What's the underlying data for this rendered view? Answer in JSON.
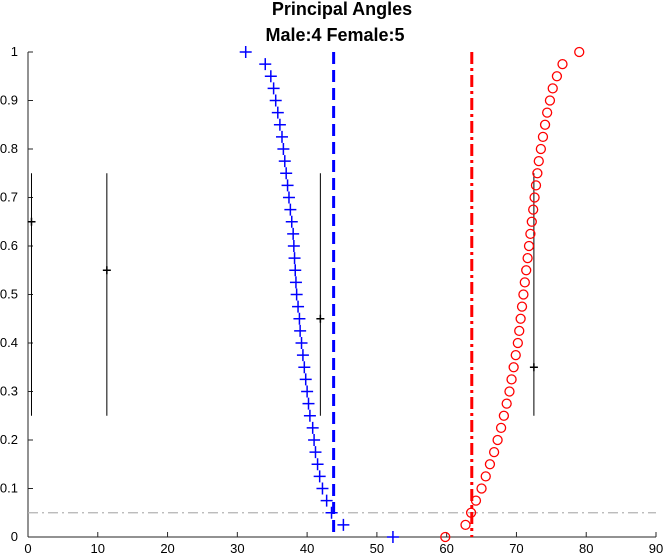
{
  "chart_data": {
    "type": "scatter",
    "title": "Principal Angles",
    "subtitle": "Male:4  Female:5",
    "xlabel": "",
    "ylabel": "",
    "xlim": [
      0,
      90
    ],
    "ylim": [
      0,
      1
    ],
    "x_ticks": [
      0,
      10,
      20,
      30,
      40,
      50,
      60,
      70,
      80,
      90
    ],
    "y_ticks": [
      0,
      0.1,
      0.2,
      0.3,
      0.4,
      0.5,
      0.6,
      0.7,
      0.8,
      0.9,
      1
    ],
    "x_tick_labels": [
      "0",
      "10",
      "20",
      "30",
      "40",
      "50",
      "60",
      "70",
      "80",
      "90"
    ],
    "y_tick_labels": [
      "0",
      "0.1",
      "0.2",
      "0.3",
      "0.4",
      "0.5",
      "0.6",
      "0.7",
      "0.8",
      "0.9",
      "1"
    ],
    "grid": false,
    "legend": "none",
    "series": [
      {
        "marker": "plus",
        "color": "#0000ff",
        "points": [
          [
            31.2,
            1.0
          ],
          [
            34.0,
            0.975
          ],
          [
            34.8,
            0.95
          ],
          [
            35.2,
            0.925
          ],
          [
            35.5,
            0.9
          ],
          [
            35.8,
            0.875
          ],
          [
            36.1,
            0.85
          ],
          [
            36.4,
            0.825
          ],
          [
            36.6,
            0.8
          ],
          [
            36.8,
            0.775
          ],
          [
            37.0,
            0.75
          ],
          [
            37.2,
            0.725
          ],
          [
            37.4,
            0.7
          ],
          [
            37.6,
            0.675
          ],
          [
            37.8,
            0.65
          ],
          [
            38.0,
            0.625
          ],
          [
            38.1,
            0.6
          ],
          [
            38.2,
            0.575
          ],
          [
            38.3,
            0.55
          ],
          [
            38.4,
            0.525
          ],
          [
            38.5,
            0.5
          ],
          [
            38.7,
            0.475
          ],
          [
            38.9,
            0.45
          ],
          [
            39.0,
            0.425
          ],
          [
            39.2,
            0.4
          ],
          [
            39.4,
            0.375
          ],
          [
            39.6,
            0.35
          ],
          [
            39.8,
            0.325
          ],
          [
            40.0,
            0.3
          ],
          [
            40.2,
            0.275
          ],
          [
            40.4,
            0.25
          ],
          [
            40.8,
            0.225
          ],
          [
            41.0,
            0.2
          ],
          [
            41.2,
            0.175
          ],
          [
            41.5,
            0.15
          ],
          [
            41.8,
            0.125
          ],
          [
            42.2,
            0.1
          ],
          [
            42.8,
            0.075
          ],
          [
            43.5,
            0.05
          ],
          [
            45.2,
            0.025
          ],
          [
            52.3,
            0.0
          ]
        ]
      },
      {
        "marker": "circle",
        "color": "#ff0000",
        "points": [
          [
            59.8,
            0.0
          ],
          [
            62.7,
            0.025
          ],
          [
            63.5,
            0.05
          ],
          [
            64.2,
            0.075
          ],
          [
            65.0,
            0.1
          ],
          [
            65.6,
            0.125
          ],
          [
            66.2,
            0.15
          ],
          [
            66.8,
            0.175
          ],
          [
            67.3,
            0.2
          ],
          [
            67.8,
            0.225
          ],
          [
            68.2,
            0.25
          ],
          [
            68.6,
            0.275
          ],
          [
            69.0,
            0.3
          ],
          [
            69.3,
            0.325
          ],
          [
            69.6,
            0.35
          ],
          [
            69.9,
            0.375
          ],
          [
            70.2,
            0.4
          ],
          [
            70.4,
            0.425
          ],
          [
            70.6,
            0.45
          ],
          [
            70.8,
            0.475
          ],
          [
            71.0,
            0.5
          ],
          [
            71.2,
            0.525
          ],
          [
            71.4,
            0.55
          ],
          [
            71.6,
            0.575
          ],
          [
            71.8,
            0.6
          ],
          [
            72.0,
            0.625
          ],
          [
            72.2,
            0.65
          ],
          [
            72.4,
            0.675
          ],
          [
            72.6,
            0.7
          ],
          [
            72.8,
            0.725
          ],
          [
            73.0,
            0.75
          ],
          [
            73.2,
            0.775
          ],
          [
            73.5,
            0.8
          ],
          [
            73.8,
            0.825
          ],
          [
            74.1,
            0.85
          ],
          [
            74.4,
            0.875
          ],
          [
            74.8,
            0.9
          ],
          [
            75.2,
            0.925
          ],
          [
            75.8,
            0.95
          ],
          [
            76.6,
            0.975
          ],
          [
            79.0,
            1.0
          ]
        ]
      }
    ],
    "vertical_lines": [
      {
        "x": 43.8,
        "color": "#0000ff",
        "style": "dashed"
      },
      {
        "x": 63.6,
        "color": "#ff0000",
        "style": "dashdot"
      }
    ],
    "horizontal_lines": [
      {
        "y": 0.05,
        "color": "#b3b3b3",
        "style": "dashdot"
      }
    ],
    "error_bars": [
      {
        "x": 0.5,
        "y": 0.65,
        "low": 0.25,
        "high": 0.75
      },
      {
        "x": 11.3,
        "y": 0.55,
        "low": 0.25,
        "high": 0.75
      },
      {
        "x": 41.9,
        "y": 0.45,
        "low": 0.25,
        "high": 0.75
      },
      {
        "x": 72.5,
        "y": 0.35,
        "low": 0.25,
        "high": 0.75
      }
    ]
  }
}
